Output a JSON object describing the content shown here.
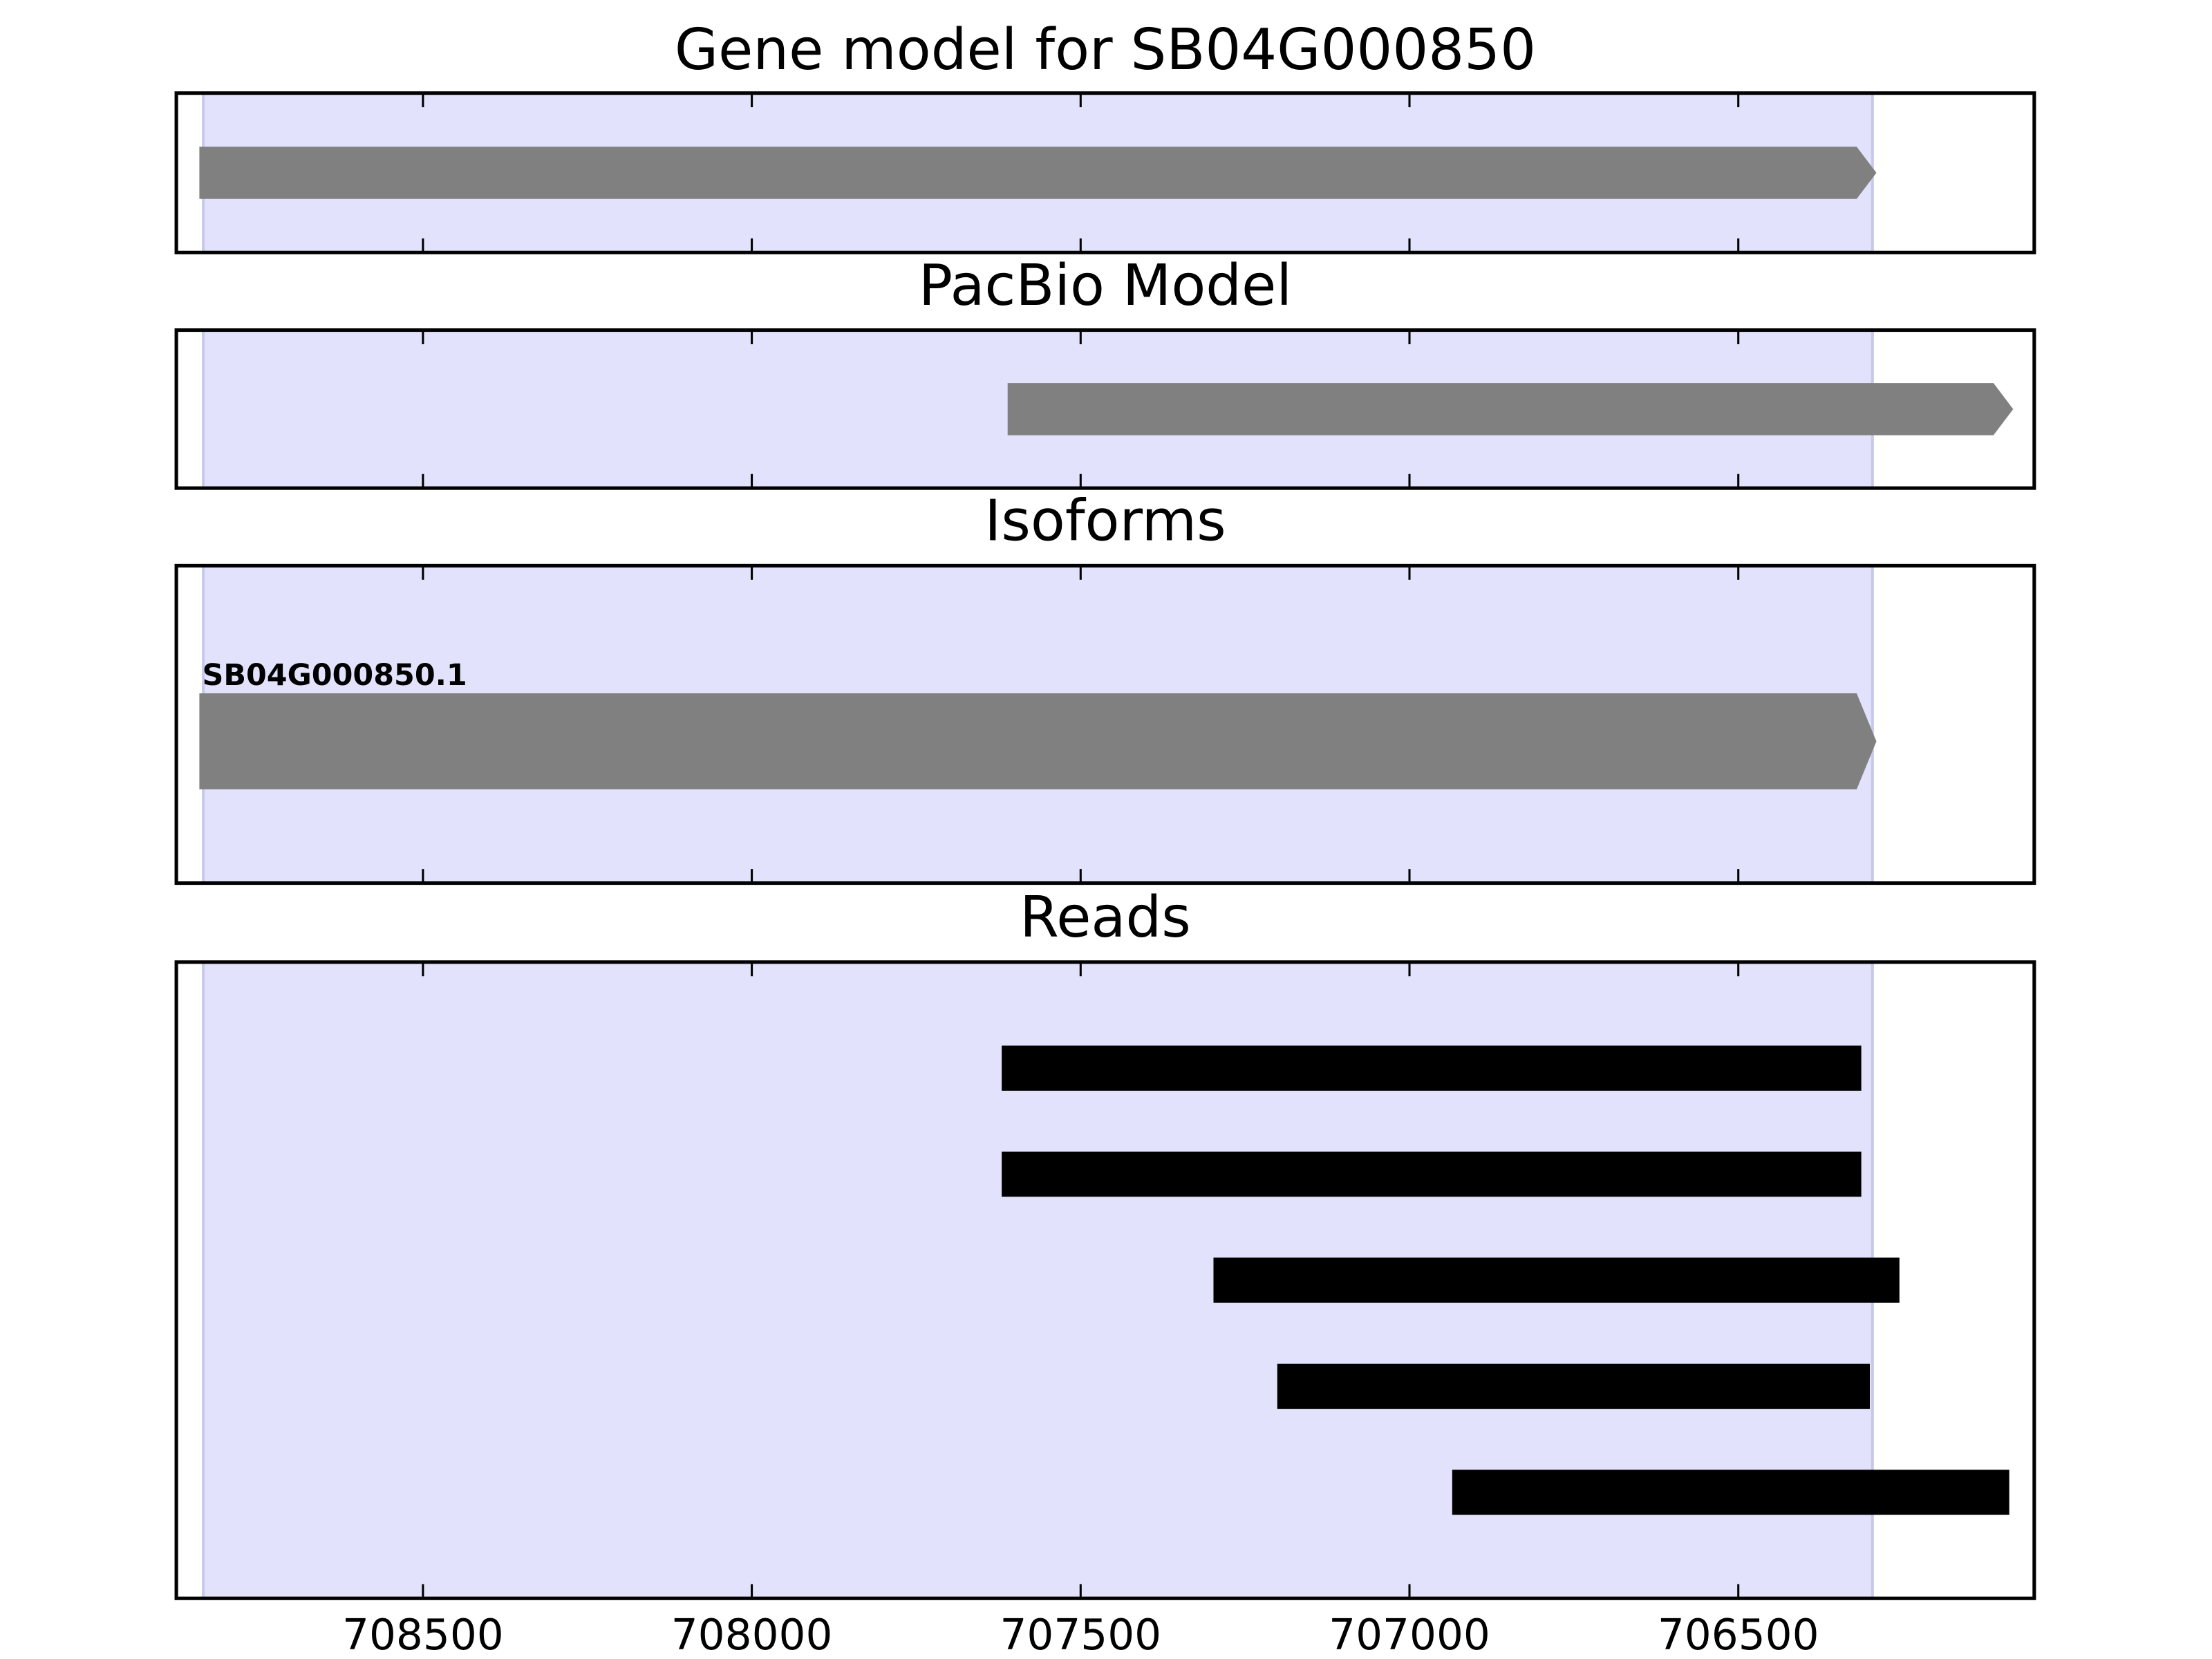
{
  "chart_data": [
    {
      "type": "track",
      "title": "Gene model for SB04G000850",
      "shape": "arrow",
      "color": "#808080",
      "highlight": [
        708834,
        706296
      ],
      "highlight_color": "#e2e2fc",
      "xlim": [
        708875,
        706050
      ],
      "xticks": [
        708500,
        708000,
        707500,
        707000,
        706500
      ],
      "xtick_labels": false,
      "features": [
        {
          "start": 708840,
          "end": 706290
        }
      ]
    },
    {
      "type": "track",
      "title": "PacBio Model",
      "shape": "arrow",
      "color": "#808080",
      "highlight": [
        708834,
        706296
      ],
      "highlight_color": "#e2e2fc",
      "xlim": [
        708875,
        706050
      ],
      "xticks": [
        708500,
        708000,
        707500,
        707000,
        706500
      ],
      "xtick_labels": false,
      "features": [
        {
          "start": 707611,
          "end": 706082
        }
      ]
    },
    {
      "type": "track",
      "title": "Isoforms",
      "shape": "arrow",
      "color": "#808080",
      "highlight": [
        708834,
        706296
      ],
      "highlight_color": "#e2e2fc",
      "xlim": [
        708875,
        706050
      ],
      "xticks": [
        708500,
        708000,
        707500,
        707000,
        706500
      ],
      "xtick_labels": false,
      "features": [
        {
          "label": "SB04G000850.1",
          "start": 708840,
          "end": 706290
        }
      ]
    },
    {
      "type": "track",
      "title": "Reads",
      "shape": "bar",
      "color": "#000000",
      "highlight": [
        708834,
        706296
      ],
      "highlight_color": "#e2e2fc",
      "xlim": [
        708875,
        706050
      ],
      "xticks": [
        708500,
        708000,
        707500,
        707000,
        706500
      ],
      "xtick_labels": true,
      "features": [
        {
          "start": 707620,
          "end": 706313
        },
        {
          "start": 707620,
          "end": 706313
        },
        {
          "start": 707298,
          "end": 706255
        },
        {
          "start": 707201,
          "end": 706300
        },
        {
          "start": 706935,
          "end": 706088
        }
      ]
    }
  ]
}
